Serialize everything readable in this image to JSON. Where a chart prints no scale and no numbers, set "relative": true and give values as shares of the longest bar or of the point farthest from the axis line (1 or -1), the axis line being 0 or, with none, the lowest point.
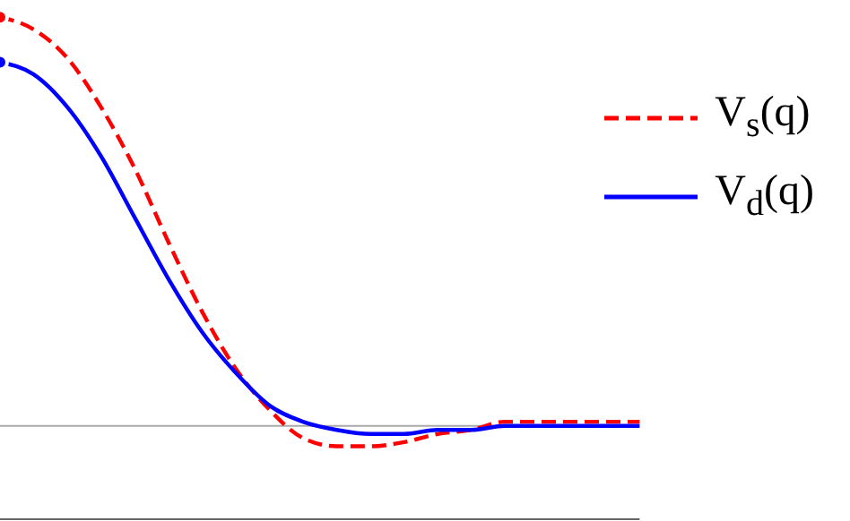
{
  "chart_data": {
    "type": "line",
    "relative": true,
    "categories": [
      null,
      null,
      null,
      null,
      null,
      null,
      null,
      null,
      null,
      null,
      null,
      null,
      null,
      null,
      null,
      null,
      null,
      null,
      null,
      null
    ],
    "series": [
      {
        "name": "V$_{s}$(q)",
        "color": "#ff0000",
        "line_style": "dashed",
        "values": [
          1,
          0.97,
          0.9,
          0.78,
          0.63,
          0.45,
          0.28,
          0.14,
          0.04,
          -0.03,
          -0.05,
          -0.05,
          -0.04,
          -0.02,
          -0.01,
          0.01,
          0.01,
          0.01,
          0.01,
          0.01
        ]
      },
      {
        "name": "V$_{d}$(q)",
        "color": "#0000ff",
        "line_style": "solid",
        "values": [
          0.89,
          0.86,
          0.78,
          0.66,
          0.51,
          0.36,
          0.23,
          0.13,
          0.05,
          0.01,
          -0.01,
          -0.02,
          -0.02,
          -0.01,
          -0.01,
          0,
          0,
          0,
          0,
          0
        ]
      }
    ],
    "ref_lines": [
      {
        "axis": "y",
        "value": 0,
        "color": "#aaaaaa"
      }
    ],
    "legend": "top right",
    "grid": false,
    "tick_labels": false,
    "marker": "none"
  }
}
